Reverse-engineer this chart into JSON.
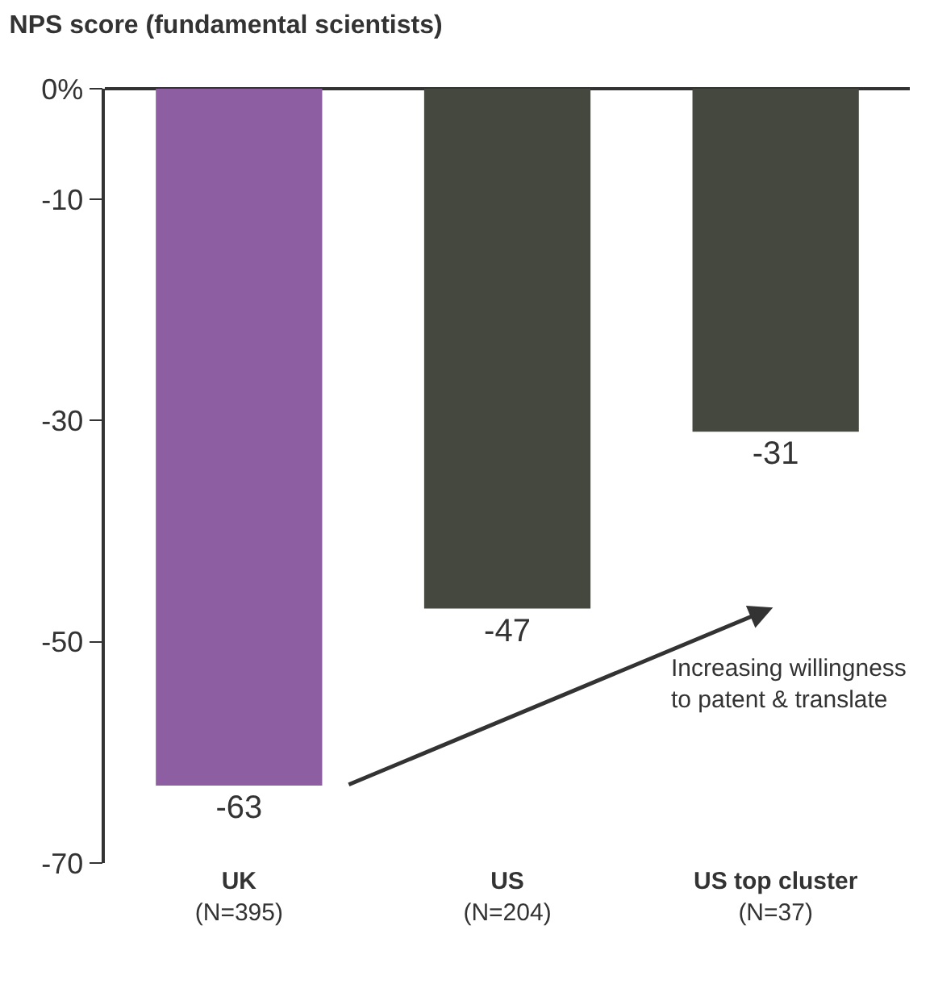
{
  "chart_data": {
    "type": "bar",
    "title": "NPS score (fundamental scientists)",
    "categories": [
      "UK\n(N=395)",
      "US\n(N=204)",
      "US top cluster\n(N=37)"
    ],
    "values": [
      -63,
      -47,
      -31
    ],
    "colors": [
      "#8e5ea2",
      "#45483f",
      "#45483f"
    ],
    "ylim": [
      -70,
      0
    ],
    "yticks": [
      {
        "value": 0,
        "label": "0%"
      },
      -10,
      -30,
      -50,
      -70
    ],
    "data_labels": true,
    "legend": false,
    "annotations": [
      "Increasing willingness\nto patent & translate"
    ]
  }
}
